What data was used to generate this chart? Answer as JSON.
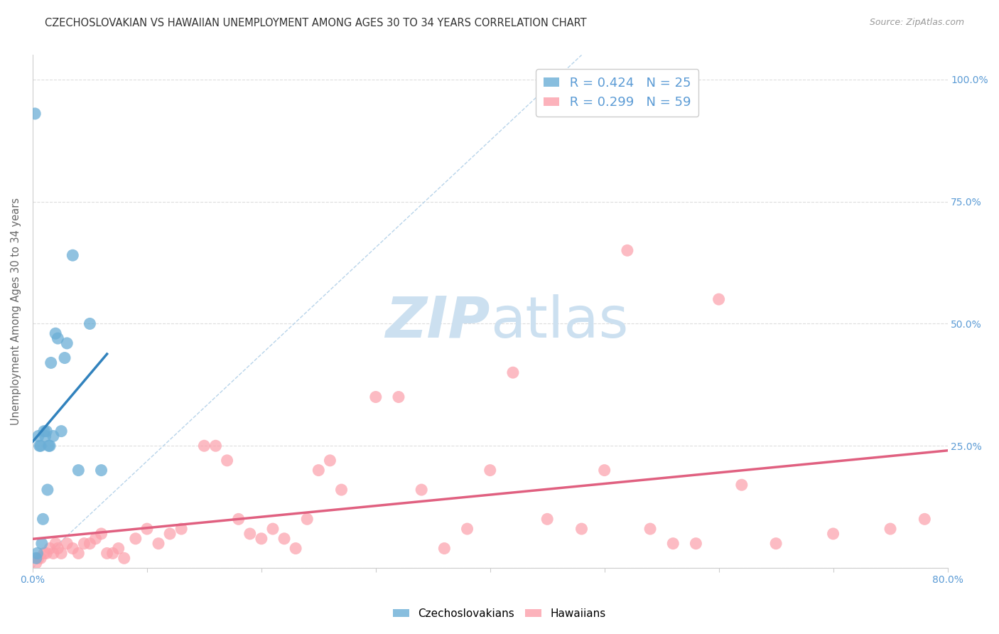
{
  "title": "CZECHOSLOVAKIAN VS HAWAIIAN UNEMPLOYMENT AMONG AGES 30 TO 34 YEARS CORRELATION CHART",
  "source": "Source: ZipAtlas.com",
  "ylabel": "Unemployment Among Ages 30 to 34 years",
  "xlim": [
    0.0,
    0.8
  ],
  "ylim": [
    0.0,
    1.05
  ],
  "x_ticks": [
    0.0,
    0.1,
    0.2,
    0.3,
    0.4,
    0.5,
    0.6,
    0.7,
    0.8
  ],
  "x_tick_labels": [
    "0.0%",
    "",
    "",
    "",
    "",
    "",
    "",
    "",
    "80.0%"
  ],
  "y_ticks": [
    0.0,
    0.25,
    0.5,
    0.75,
    1.0
  ],
  "right_y_tick_labels": [
    "",
    "25.0%",
    "50.0%",
    "75.0%",
    "100.0%"
  ],
  "czech_color": "#6baed6",
  "hawaiian_color": "#fc9faa",
  "czech_line_color": "#3182bd",
  "hawaiian_line_color": "#e06080",
  "czech_R": 0.424,
  "czech_N": 25,
  "hawaiian_R": 0.299,
  "hawaiian_N": 59,
  "czech_scatter_x": [
    0.002,
    0.003,
    0.004,
    0.005,
    0.006,
    0.007,
    0.008,
    0.009,
    0.01,
    0.011,
    0.012,
    0.013,
    0.014,
    0.015,
    0.016,
    0.018,
    0.02,
    0.022,
    0.025,
    0.028,
    0.03,
    0.035,
    0.04,
    0.05,
    0.06
  ],
  "czech_scatter_y": [
    0.93,
    0.02,
    0.03,
    0.27,
    0.25,
    0.25,
    0.05,
    0.1,
    0.28,
    0.27,
    0.28,
    0.16,
    0.25,
    0.25,
    0.42,
    0.27,
    0.48,
    0.47,
    0.28,
    0.43,
    0.46,
    0.64,
    0.2,
    0.5,
    0.2
  ],
  "hawaiian_scatter_x": [
    0.003,
    0.005,
    0.007,
    0.01,
    0.012,
    0.015,
    0.018,
    0.02,
    0.022,
    0.025,
    0.03,
    0.035,
    0.04,
    0.045,
    0.05,
    0.055,
    0.06,
    0.065,
    0.07,
    0.075,
    0.08,
    0.09,
    0.1,
    0.11,
    0.12,
    0.13,
    0.15,
    0.16,
    0.17,
    0.18,
    0.19,
    0.2,
    0.21,
    0.22,
    0.23,
    0.24,
    0.25,
    0.26,
    0.27,
    0.3,
    0.32,
    0.34,
    0.36,
    0.38,
    0.4,
    0.42,
    0.45,
    0.48,
    0.5,
    0.52,
    0.54,
    0.56,
    0.58,
    0.6,
    0.62,
    0.65,
    0.7,
    0.75,
    0.78
  ],
  "hawaiian_scatter_y": [
    0.01,
    0.02,
    0.02,
    0.03,
    0.03,
    0.04,
    0.03,
    0.05,
    0.04,
    0.03,
    0.05,
    0.04,
    0.03,
    0.05,
    0.05,
    0.06,
    0.07,
    0.03,
    0.03,
    0.04,
    0.02,
    0.06,
    0.08,
    0.05,
    0.07,
    0.08,
    0.25,
    0.25,
    0.22,
    0.1,
    0.07,
    0.06,
    0.08,
    0.06,
    0.04,
    0.1,
    0.2,
    0.22,
    0.16,
    0.35,
    0.35,
    0.16,
    0.04,
    0.08,
    0.2,
    0.4,
    0.1,
    0.08,
    0.2,
    0.65,
    0.08,
    0.05,
    0.05,
    0.55,
    0.17,
    0.05,
    0.07,
    0.08,
    0.1
  ],
  "diag_line_color": "#b8d4ea",
  "watermark_color": "#cce0f0",
  "watermark_fontsize": 58,
  "background_color": "#ffffff",
  "grid_color": "#dddddd"
}
